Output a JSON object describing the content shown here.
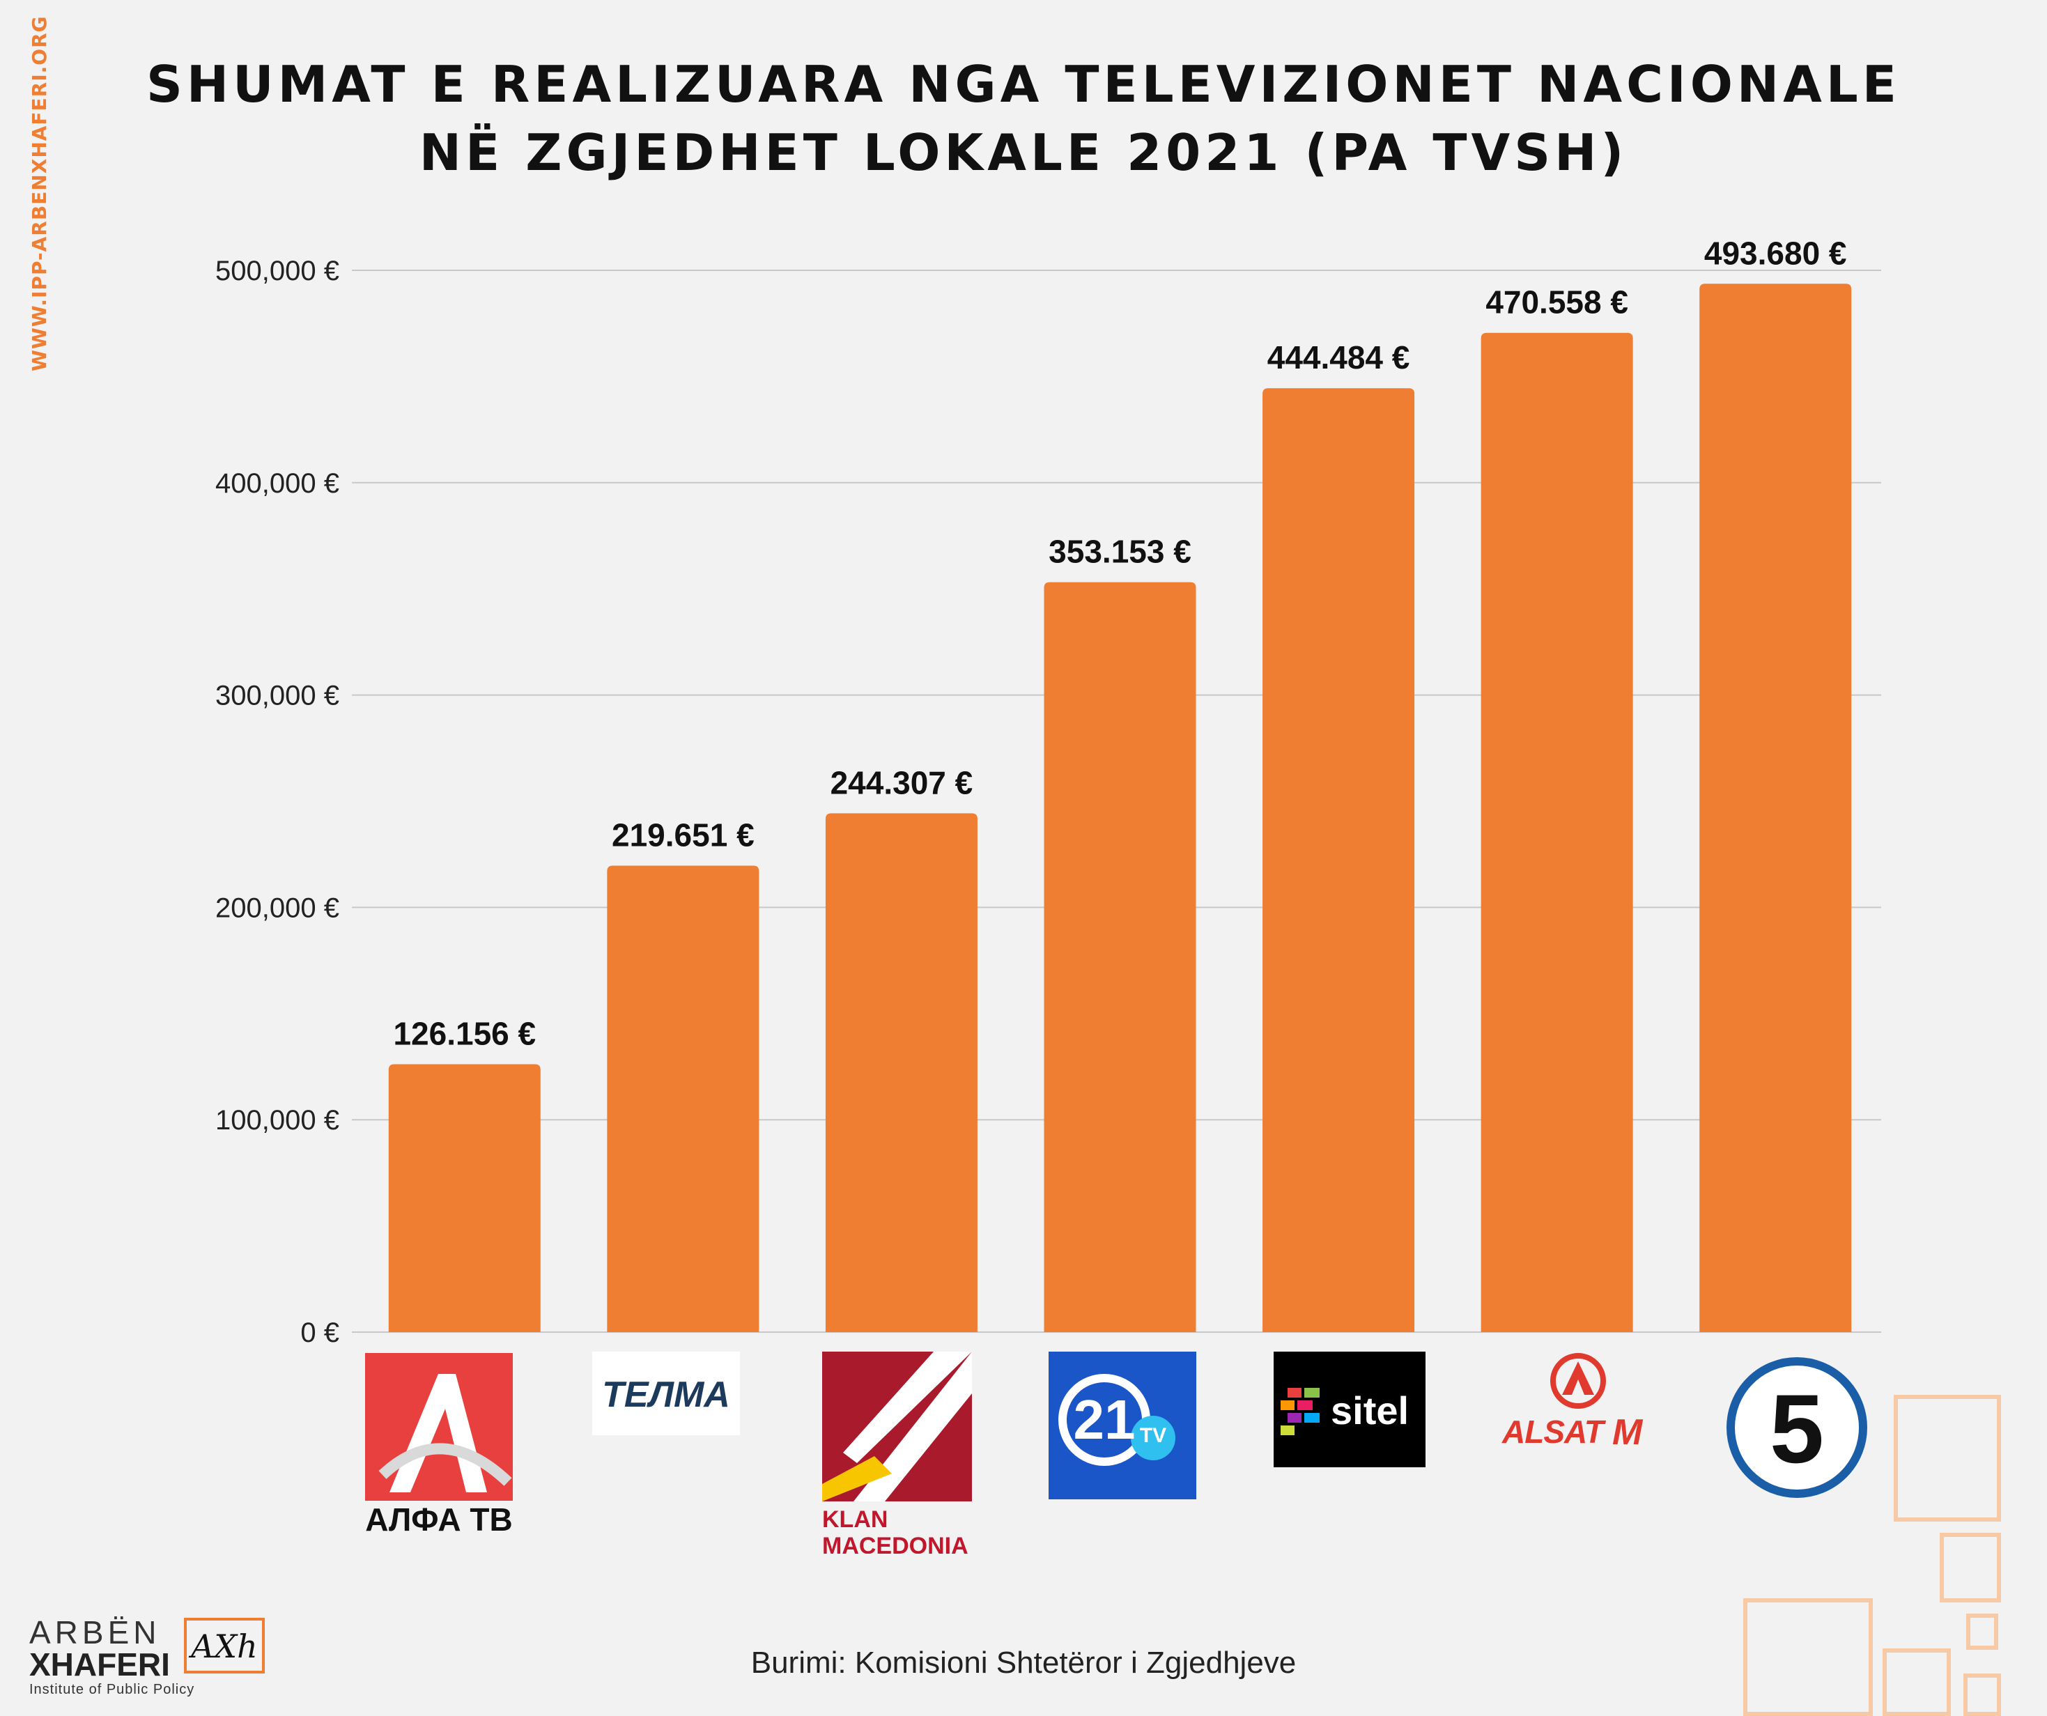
{
  "site_url": "WWW.IPP-ARBENXHAFERI.ORG",
  "title_line1": "SHUMAT E REALIZUARA NGA TELEVIZIONET NACIONALE",
  "title_line2": "NË ZGJEDHET LOKALE 2021 (PA TVSH)",
  "source": "Burimi: Komisioni Shtetëror i Zgjedhjeve",
  "brand": {
    "name_top": "ARBËN",
    "name_bottom": "XHAFERI",
    "subtitle": "Institute of Public Policy",
    "mark": "AXh"
  },
  "logos": [
    {
      "icon": "alfa-tv-logo",
      "text": "АЛФА ТВ"
    },
    {
      "icon": "telma-logo",
      "text": "ТЕЛМА"
    },
    {
      "icon": "klan-macedonia-logo",
      "text": "KLAN MACEDONIA"
    },
    {
      "icon": "tv21-logo",
      "text": "21",
      "badge": "TV"
    },
    {
      "icon": "sitel-logo",
      "text": "sitel"
    },
    {
      "icon": "alsat-m-logo",
      "text": "ALSAT"
    },
    {
      "icon": "kanal5-logo",
      "text": "5"
    }
  ],
  "colors": {
    "bar": "#ef7d32",
    "accent": "#ef7d32",
    "grid": "#c8c8c8"
  },
  "chart_data": {
    "type": "bar",
    "categories": [
      "АЛФА ТВ",
      "ТЕЛМА",
      "KLAN MACEDONIA",
      "21 TV",
      "sitel",
      "ALSAT M",
      "5"
    ],
    "values": [
      126156,
      219651,
      244307,
      353153,
      444484,
      470558,
      493680
    ],
    "data_labels": [
      "126.156 €",
      "219.651 €",
      "244.307 €",
      "353.153 €",
      "444.484 €",
      "470.558 €",
      "493.680 €"
    ],
    "yticks": [
      0,
      100000,
      200000,
      300000,
      400000,
      500000
    ],
    "ytick_labels": [
      "0 €",
      "100,000 €",
      "200,000 €",
      "300,000 €",
      "400,000 €",
      "500,000 €"
    ],
    "ylim": [
      0,
      500000
    ],
    "grid": true,
    "legend": false
  }
}
